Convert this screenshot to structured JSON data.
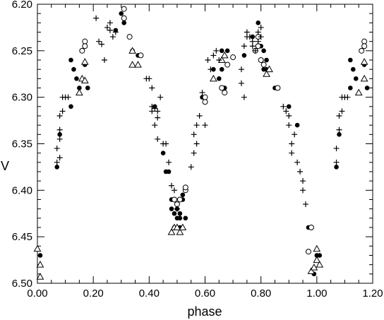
{
  "chart_data": {
    "type": "scatter",
    "title": "",
    "xlabel": "phase",
    "ylabel": "V",
    "xlim": [
      0.0,
      1.2
    ],
    "ylim": [
      6.5,
      6.2
    ],
    "y_inverted": true,
    "xticks": [
      "0.00",
      "0.20",
      "0.40",
      "0.60",
      "0.80",
      "1.00",
      "1.20"
    ],
    "yticks": [
      "6.20",
      "6.25",
      "6.30",
      "6.35",
      "6.40",
      "6.45",
      "6.50"
    ],
    "grid": false,
    "series": [
      {
        "marker": "filled-circle",
        "points": [
          [
            0.01,
            6.47
          ],
          [
            0.07,
            6.375
          ],
          [
            0.08,
            6.34
          ],
          [
            0.12,
            6.26
          ],
          [
            0.12,
            6.31
          ],
          [
            0.13,
            6.27
          ],
          [
            0.14,
            6.28
          ],
          [
            0.15,
            6.29
          ],
          [
            0.17,
            6.265
          ],
          [
            0.18,
            6.29
          ],
          [
            0.28,
            6.228
          ],
          [
            0.3,
            6.21
          ],
          [
            0.31,
            6.22
          ],
          [
            0.34,
            6.25
          ],
          [
            0.36,
            6.255
          ],
          [
            0.42,
            6.31
          ],
          [
            0.45,
            6.36
          ],
          [
            0.46,
            6.38
          ],
          [
            0.47,
            6.38
          ],
          [
            0.48,
            6.41
          ],
          [
            0.48,
            6.42
          ],
          [
            0.49,
            6.425
          ],
          [
            0.49,
            6.44
          ],
          [
            0.5,
            6.43
          ],
          [
            0.5,
            6.42
          ],
          [
            0.51,
            6.425
          ],
          [
            0.51,
            6.43
          ],
          [
            0.52,
            6.41
          ],
          [
            0.52,
            6.405
          ],
          [
            0.53,
            6.43
          ],
          [
            0.51,
            6.44
          ],
          [
            0.59,
            6.3
          ],
          [
            0.63,
            6.27
          ],
          [
            0.65,
            6.28
          ],
          [
            0.66,
            6.25
          ],
          [
            0.66,
            6.27
          ],
          [
            0.67,
            6.29
          ],
          [
            0.68,
            6.25
          ],
          [
            0.74,
            6.255
          ],
          [
            0.77,
            6.235
          ],
          [
            0.79,
            6.22
          ],
          [
            0.8,
            6.245
          ],
          [
            0.81,
            6.25
          ],
          [
            0.81,
            6.27
          ],
          [
            0.82,
            6.26
          ],
          [
            0.82,
            6.27
          ],
          [
            0.85,
            6.29
          ],
          [
            0.9,
            6.31
          ],
          [
            0.93,
            6.33
          ],
          [
            0.97,
            6.44
          ],
          [
            0.99,
            6.49
          ],
          [
            1.0,
            6.47
          ],
          [
            1.01,
            6.47
          ],
          [
            1.07,
            6.375
          ],
          [
            1.08,
            6.34
          ],
          [
            1.12,
            6.26
          ],
          [
            1.12,
            6.29
          ],
          [
            1.13,
            6.27
          ],
          [
            1.14,
            6.28
          ],
          [
            1.17,
            6.265
          ],
          [
            1.18,
            6.29
          ]
        ]
      },
      {
        "marker": "open-circle",
        "points": [
          [
            0.16,
            6.25
          ],
          [
            0.17,
            6.24
          ],
          [
            0.17,
            6.245
          ],
          [
            0.31,
            6.215
          ],
          [
            0.31,
            6.205
          ],
          [
            0.33,
            6.235
          ],
          [
            0.37,
            6.255
          ],
          [
            0.49,
            6.41
          ],
          [
            0.5,
            6.415
          ],
          [
            0.51,
            6.41
          ],
          [
            0.53,
            6.4
          ],
          [
            0.53,
            6.397
          ],
          [
            0.6,
            6.305
          ],
          [
            0.6,
            6.3
          ],
          [
            0.66,
            6.29
          ],
          [
            0.67,
            6.295
          ],
          [
            0.68,
            6.265
          ],
          [
            0.7,
            6.257
          ],
          [
            0.78,
            6.25
          ],
          [
            0.79,
            6.235
          ],
          [
            0.79,
            6.245
          ],
          [
            0.8,
            6.26
          ],
          [
            0.81,
            6.265
          ],
          [
            0.86,
            6.29
          ],
          [
            0.97,
            6.466
          ],
          [
            0.98,
            6.44
          ],
          [
            1.16,
            6.25
          ],
          [
            1.17,
            6.24
          ],
          [
            1.17,
            6.245
          ]
        ]
      },
      {
        "marker": "open-triangle",
        "points": [
          [
            0.0,
            6.463
          ],
          [
            0.01,
            6.48
          ],
          [
            0.01,
            6.493
          ],
          [
            0.15,
            6.295
          ],
          [
            0.16,
            6.28
          ],
          [
            0.17,
            6.282
          ],
          [
            0.17,
            6.262
          ],
          [
            0.34,
            6.25
          ],
          [
            0.34,
            6.265
          ],
          [
            0.36,
            6.265
          ],
          [
            0.48,
            6.445
          ],
          [
            0.49,
            6.44
          ],
          [
            0.5,
            6.44
          ],
          [
            0.51,
            6.445
          ],
          [
            0.52,
            6.44
          ],
          [
            0.63,
            6.28
          ],
          [
            0.66,
            6.26
          ],
          [
            0.67,
            6.255
          ],
          [
            0.82,
            6.275
          ],
          [
            0.83,
            6.27
          ],
          [
            0.98,
            6.487
          ],
          [
            0.99,
            6.483
          ],
          [
            1.0,
            6.475
          ],
          [
            1.01,
            6.48
          ],
          [
            1.0,
            6.463
          ],
          [
            1.15,
            6.295
          ],
          [
            1.17,
            6.28
          ],
          [
            1.17,
            6.262
          ]
        ]
      },
      {
        "marker": "plus",
        "points": [
          [
            0.07,
            6.355
          ],
          [
            0.07,
            6.37
          ],
          [
            0.08,
            6.32
          ],
          [
            0.08,
            6.335
          ],
          [
            0.08,
            6.345
          ],
          [
            0.08,
            6.365
          ],
          [
            0.09,
            6.3
          ],
          [
            0.09,
            6.315
          ],
          [
            0.1,
            6.3
          ],
          [
            0.11,
            6.3
          ],
          [
            0.21,
            6.215
          ],
          [
            0.22,
            6.24
          ],
          [
            0.23,
            6.243
          ],
          [
            0.24,
            6.26
          ],
          [
            0.25,
            6.225
          ],
          [
            0.26,
            6.22
          ],
          [
            0.26,
            6.228
          ],
          [
            0.27,
            6.235
          ],
          [
            0.28,
            6.23
          ],
          [
            0.39,
            6.28
          ],
          [
            0.4,
            6.28
          ],
          [
            0.41,
            6.29
          ],
          [
            0.41,
            6.31
          ],
          [
            0.41,
            6.315
          ],
          [
            0.42,
            6.33
          ],
          [
            0.42,
            6.312
          ],
          [
            0.43,
            6.315
          ],
          [
            0.43,
            6.322
          ],
          [
            0.43,
            6.345
          ],
          [
            0.44,
            6.3
          ],
          [
            0.45,
            6.35
          ],
          [
            0.46,
            6.35
          ],
          [
            0.47,
            6.37
          ],
          [
            0.48,
            6.395
          ],
          [
            0.49,
            6.4
          ],
          [
            0.5,
            6.42
          ],
          [
            0.55,
            6.375
          ],
          [
            0.56,
            6.36
          ],
          [
            0.56,
            6.34
          ],
          [
            0.57,
            6.33
          ],
          [
            0.57,
            6.35
          ],
          [
            0.58,
            6.32
          ],
          [
            0.59,
            6.295
          ],
          [
            0.6,
            6.33
          ],
          [
            0.61,
            6.26
          ],
          [
            0.62,
            6.27
          ],
          [
            0.63,
            6.255
          ],
          [
            0.64,
            6.25
          ],
          [
            0.65,
            6.26
          ],
          [
            0.73,
            6.27
          ],
          [
            0.73,
            6.285
          ],
          [
            0.74,
            6.3
          ],
          [
            0.74,
            6.245
          ],
          [
            0.75,
            6.235
          ],
          [
            0.75,
            6.23
          ],
          [
            0.76,
            6.235
          ],
          [
            0.77,
            6.24
          ],
          [
            0.77,
            6.245
          ],
          [
            0.78,
            6.25
          ],
          [
            0.79,
            6.23
          ],
          [
            0.79,
            6.24
          ],
          [
            0.8,
            6.225
          ],
          [
            0.8,
            6.235
          ],
          [
            0.88,
            6.31
          ],
          [
            0.89,
            6.315
          ],
          [
            0.9,
            6.32
          ],
          [
            0.9,
            6.33
          ],
          [
            0.91,
            6.35
          ],
          [
            0.91,
            6.36
          ],
          [
            0.92,
            6.34
          ],
          [
            0.93,
            6.37
          ],
          [
            0.94,
            6.38
          ],
          [
            0.95,
            6.39
          ],
          [
            0.95,
            6.4
          ],
          [
            0.96,
            6.415
          ],
          [
            1.07,
            6.355
          ],
          [
            1.07,
            6.37
          ],
          [
            1.08,
            6.32
          ],
          [
            1.08,
            6.335
          ],
          [
            1.09,
            6.3
          ],
          [
            1.09,
            6.315
          ],
          [
            1.1,
            6.3
          ],
          [
            1.11,
            6.3
          ]
        ]
      }
    ]
  }
}
